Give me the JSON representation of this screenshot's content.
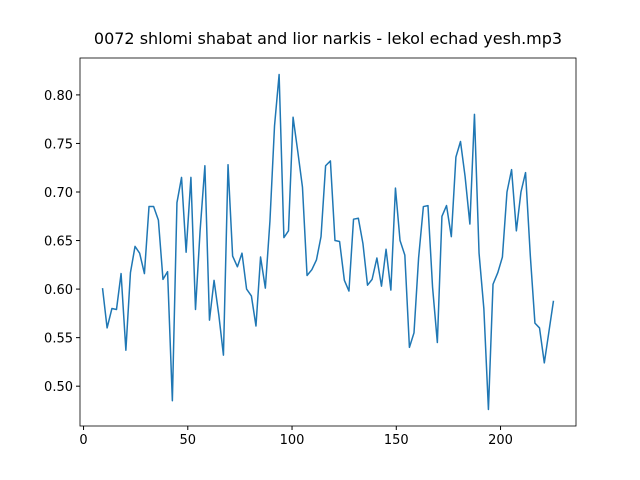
{
  "chart_data": {
    "type": "line",
    "title": "0072 shlomi shabat and lior narkis - lekol echad yesh.mp3",
    "x": [
      9.1,
      11.3,
      13.6,
      15.8,
      18.0,
      20.3,
      22.5,
      24.7,
      26.9,
      29.2,
      31.4,
      33.6,
      35.9,
      38.1,
      40.3,
      42.6,
      44.8,
      47.0,
      49.2,
      51.5,
      53.7,
      55.9,
      58.2,
      60.4,
      62.6,
      64.9,
      67.1,
      69.3,
      71.5,
      73.8,
      76.0,
      78.2,
      80.5,
      82.7,
      84.9,
      87.2,
      89.4,
      91.6,
      93.8,
      96.1,
      98.3,
      100.5,
      102.8,
      105.0,
      107.2,
      109.5,
      111.7,
      113.9,
      116.1,
      118.4,
      120.6,
      122.8,
      125.1,
      127.3,
      129.5,
      131.8,
      134.0,
      136.2,
      138.4,
      140.7,
      142.9,
      145.1,
      147.4,
      149.6,
      151.8,
      154.1,
      156.3,
      158.5,
      160.7,
      163.0,
      165.2,
      167.4,
      169.7,
      171.9,
      174.1,
      176.4,
      178.6,
      180.8,
      183.0,
      185.3,
      187.5,
      189.7,
      192.0,
      194.2,
      196.4,
      198.7,
      200.9,
      203.1,
      205.3,
      207.6,
      209.8,
      212.0,
      214.3,
      216.5,
      218.7,
      221.0,
      223.2,
      225.4
    ],
    "series": [
      {
        "color": "#1f77b4",
        "values": [
          0.601,
          0.56,
          0.58,
          0.579,
          0.616,
          0.537,
          0.617,
          0.644,
          0.637,
          0.616,
          0.685,
          0.685,
          0.671,
          0.61,
          0.618,
          0.485,
          0.689,
          0.715,
          0.638,
          0.715,
          0.579,
          0.66,
          0.727,
          0.568,
          0.609,
          0.573,
          0.532,
          0.728,
          0.634,
          0.623,
          0.637,
          0.6,
          0.593,
          0.562,
          0.633,
          0.601,
          0.67,
          0.768,
          0.821,
          0.653,
          0.66,
          0.777,
          0.741,
          0.705,
          0.614,
          0.62,
          0.63,
          0.654,
          0.727,
          0.732,
          0.65,
          0.649,
          0.609,
          0.598,
          0.672,
          0.673,
          0.647,
          0.604,
          0.61,
          0.632,
          0.603,
          0.641,
          0.599,
          0.704,
          0.65,
          0.635,
          0.54,
          0.555,
          0.632,
          0.685,
          0.686,
          0.602,
          0.545,
          0.675,
          0.686,
          0.654,
          0.736,
          0.752,
          0.716,
          0.667,
          0.78,
          0.637,
          0.58,
          0.476,
          0.605,
          0.617,
          0.633,
          0.7,
          0.723,
          0.66,
          0.7,
          0.72,
          0.634,
          0.565,
          0.56,
          0.524,
          0.556,
          0.588
        ]
      }
    ],
    "xlim": [
      -1.7,
      236.2
    ],
    "ylim": [
      0.459,
      0.838
    ],
    "xticks": [
      0,
      50,
      100,
      150,
      200
    ],
    "yticks": [
      {
        "value": 0.5,
        "label": "0.50"
      },
      {
        "value": 0.55,
        "label": "0.55"
      },
      {
        "value": 0.6,
        "label": "0.60"
      },
      {
        "value": 0.65,
        "label": "0.65"
      },
      {
        "value": 0.7,
        "label": "0.70"
      },
      {
        "value": 0.75,
        "label": "0.75"
      },
      {
        "value": 0.8,
        "label": "0.80"
      }
    ]
  }
}
